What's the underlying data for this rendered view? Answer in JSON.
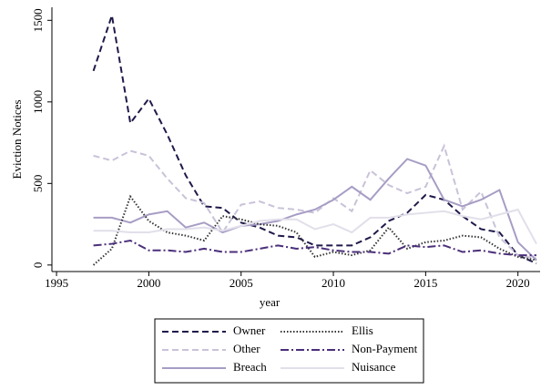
{
  "chart_data": {
    "type": "line",
    "x_label": "year",
    "y_label": "Eviction Notices",
    "x": [
      1997,
      1998,
      1999,
      2000,
      2001,
      2002,
      2003,
      2004,
      2005,
      2006,
      2007,
      2008,
      2009,
      2010,
      2011,
      2012,
      2013,
      2014,
      2015,
      2016,
      2017,
      2018,
      2019,
      2020,
      2021
    ],
    "series": [
      {
        "name": "Owner",
        "color": "#1f1a4a",
        "style": "dash",
        "values": [
          1190,
          1530,
          870,
          1020,
          800,
          550,
          360,
          350,
          260,
          230,
          180,
          170,
          120,
          120,
          120,
          170,
          270,
          320,
          430,
          400,
          300,
          220,
          200,
          60,
          10
        ]
      },
      {
        "name": "Other",
        "color": "#c9c2d8",
        "style": "dash",
        "values": [
          670,
          640,
          700,
          670,
          530,
          410,
          380,
          200,
          370,
          390,
          350,
          340,
          320,
          410,
          330,
          580,
          490,
          440,
          480,
          730,
          340,
          450,
          170,
          60,
          40
        ]
      },
      {
        "name": "Breach",
        "color": "#a79dc4",
        "style": "solid",
        "values": [
          290,
          290,
          260,
          310,
          330,
          230,
          260,
          200,
          240,
          250,
          270,
          310,
          340,
          400,
          480,
          400,
          530,
          650,
          610,
          400,
          360,
          400,
          460,
          140,
          30
        ]
      },
      {
        "name": "Ellis",
        "color": "#333333",
        "style": "dot",
        "values": [
          0,
          100,
          420,
          270,
          200,
          180,
          150,
          300,
          280,
          250,
          240,
          200,
          50,
          80,
          60,
          90,
          230,
          100,
          140,
          150,
          180,
          170,
          100,
          50,
          30
        ]
      },
      {
        "name": "Non-Payment",
        "color": "#4b2f7a",
        "style": "dashdot",
        "values": [
          120,
          130,
          150,
          90,
          90,
          80,
          100,
          80,
          80,
          100,
          120,
          100,
          110,
          90,
          80,
          80,
          70,
          120,
          110,
          120,
          80,
          90,
          70,
          60,
          60
        ]
      },
      {
        "name": "Nuisance",
        "color": "#e2dfea",
        "style": "solid",
        "values": [
          210,
          210,
          200,
          200,
          220,
          220,
          230,
          210,
          240,
          270,
          280,
          280,
          220,
          250,
          200,
          290,
          290,
          310,
          320,
          330,
          300,
          280,
          310,
          340,
          130
        ]
      }
    ],
    "xlim": [
      1994.75,
      2021.2
    ],
    "ylim": [
      -40,
      1580
    ],
    "xticks": [
      1995,
      2000,
      2005,
      2010,
      2015,
      2020
    ],
    "yticks": [
      0,
      500,
      1000,
      1500
    ],
    "grid": false,
    "legend": "bottom"
  }
}
